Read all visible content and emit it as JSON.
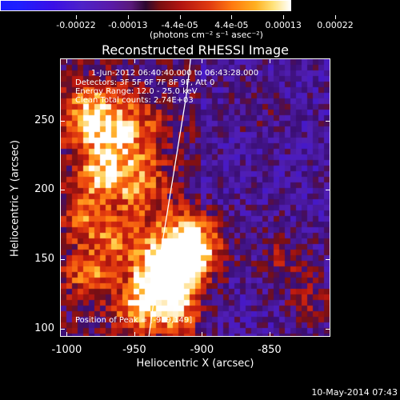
{
  "colorbar": {
    "tick_labels": [
      "-0.00022",
      "-0.00013",
      "-4.4e-05",
      "4.4e-05",
      "0.00013",
      "0.00022"
    ],
    "units": "(photons cm⁻² s⁻¹ asec⁻²)"
  },
  "title": "Reconstructed RHESSI Image",
  "annotations": {
    "time_range": "1-Jun-2012 06:40:40.000 to 06:43:28.000",
    "detectors": "Detectors: 3F 5F 6F 7F 8F 9F, Att 0",
    "energy_range": "Energy Range: 12.0 - 25.0 keV",
    "clean_counts": "Clean     Total counts: 2.74E+03",
    "peak_position": "Position of Peak = [-919,149]"
  },
  "axes": {
    "xlabel": "Heliocentric X (arcsec)",
    "ylabel": "Heliocentric Y (arcsec)",
    "x_ticks": [
      "-1000",
      "-950",
      "-900",
      "-850"
    ],
    "y_ticks": [
      "100",
      "150",
      "200",
      "250"
    ],
    "x_range": [
      -1005,
      -805
    ],
    "y_range": [
      94,
      295
    ]
  },
  "footer": "10-May-2014 07:43",
  "palette": {
    "background": "#000000",
    "cold": "#1f1fff",
    "neutral": "#3a0e70",
    "hot": "#ffffff"
  },
  "chart_data": {
    "type": "heatmap",
    "title": "Reconstructed RHESSI Image",
    "xlabel": "Heliocentric X (arcsec)",
    "ylabel": "Heliocentric Y (arcsec)",
    "xlim": [
      -1005,
      -805
    ],
    "ylim": [
      94,
      295
    ],
    "colorbar_range": [
      -0.00022,
      0.00022
    ],
    "peak": [
      -919,
      149
    ],
    "limb": [
      [
        -940,
        94
      ],
      [
        -932,
        150
      ],
      [
        -922,
        210
      ],
      [
        -912,
        270
      ],
      [
        -909,
        295
      ]
    ]
  }
}
